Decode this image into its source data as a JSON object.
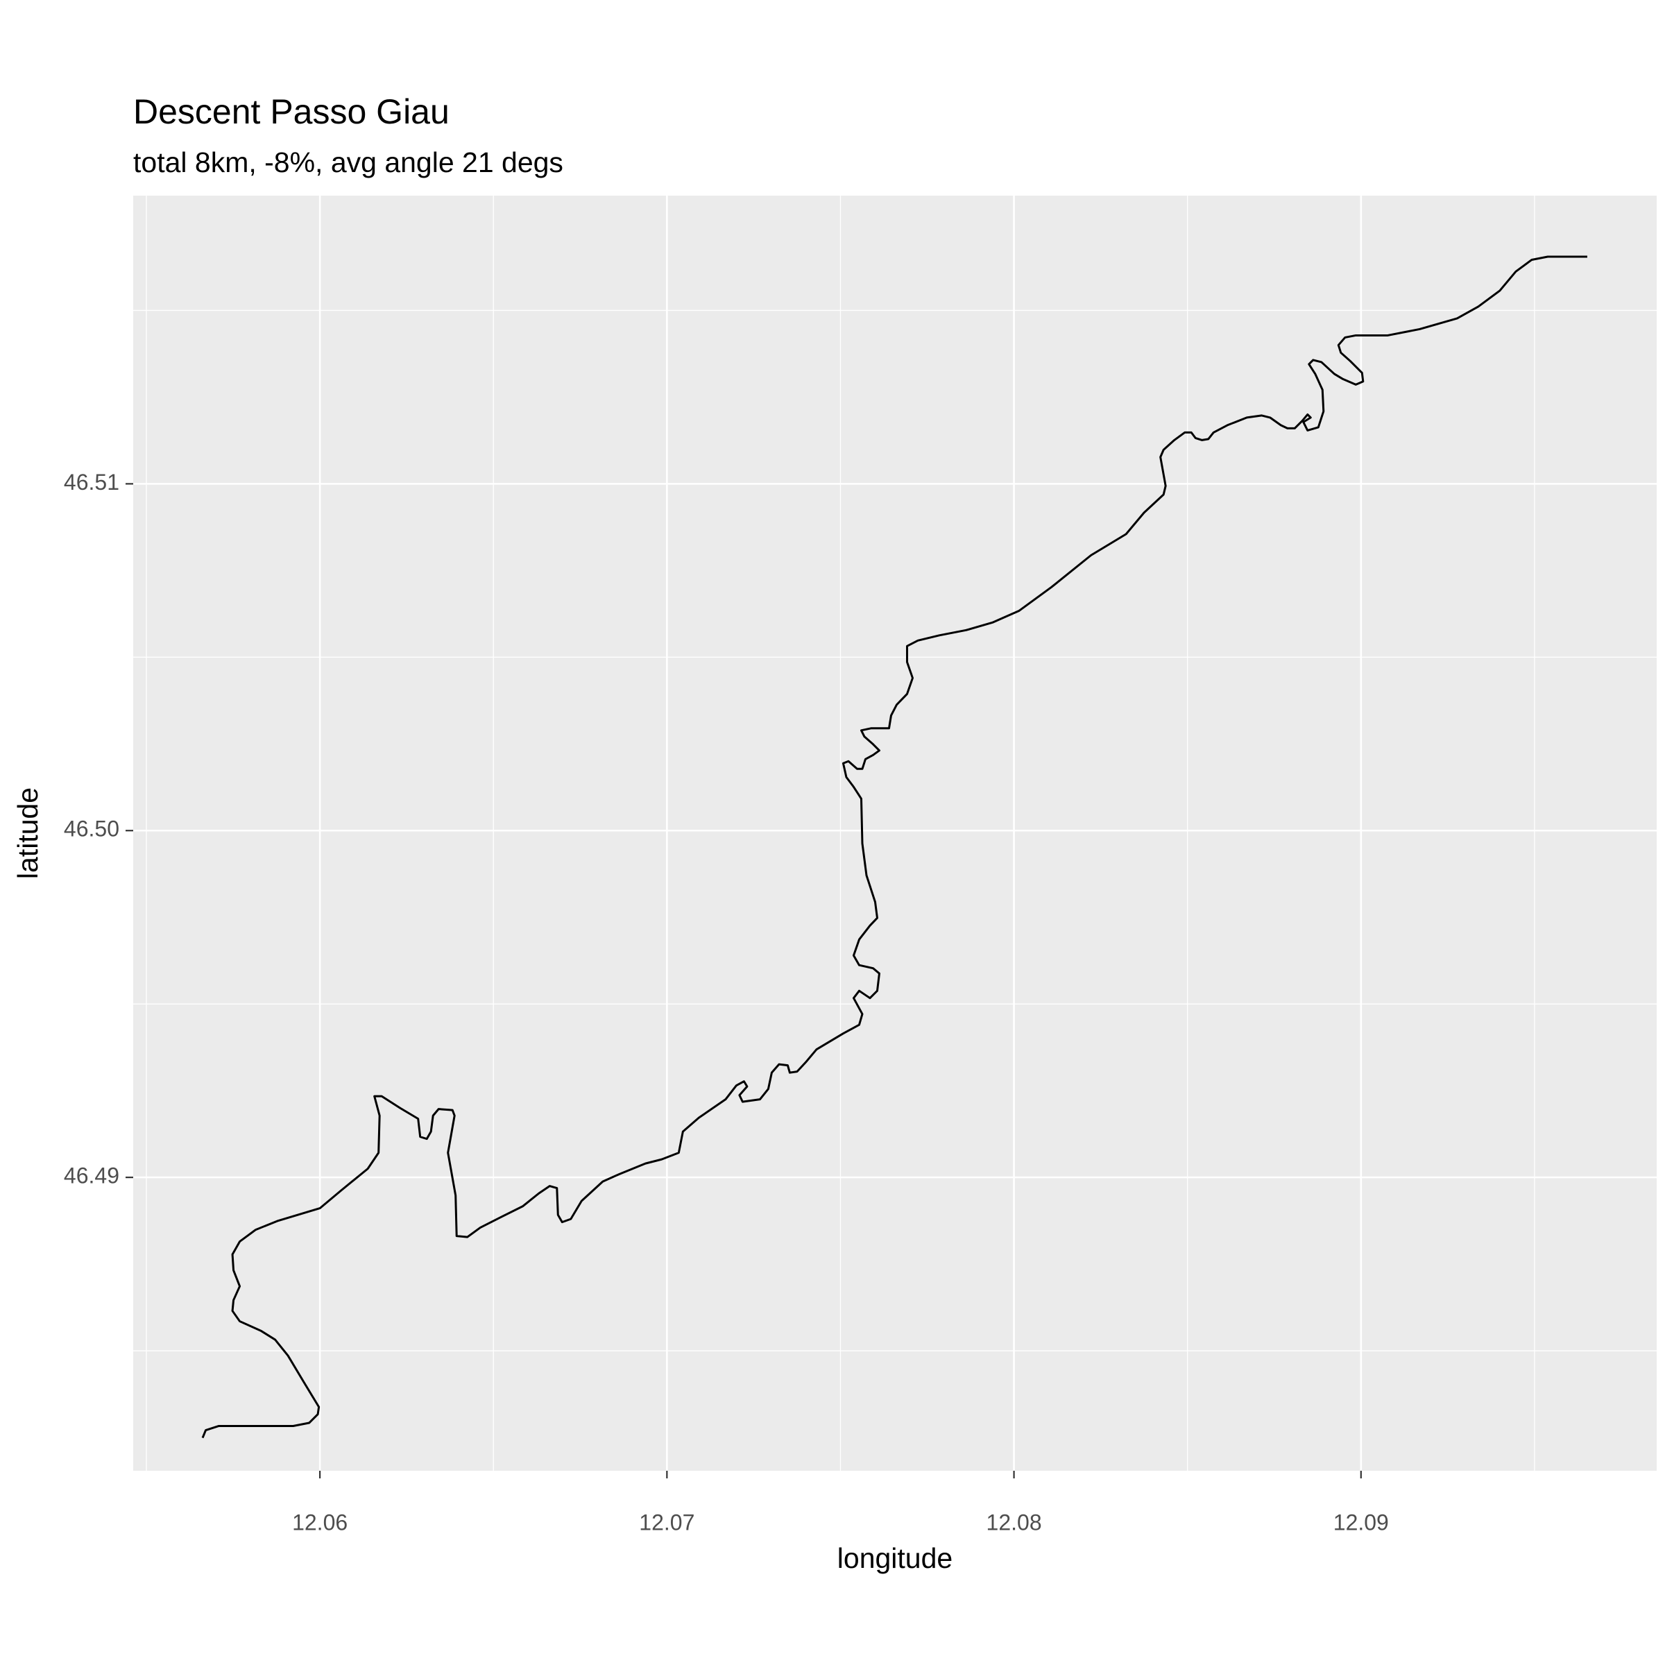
{
  "chart_data": {
    "type": "line",
    "title": "Descent Passo Giau",
    "subtitle": "total 8km, -8%, avg angle 21 degs",
    "xlabel": "longitude",
    "ylabel": "latitude",
    "color": "#000000",
    "background": "#ebebeb",
    "grid": true,
    "xlim": [
      12.05462,
      12.09852
    ],
    "ylim": [
      46.48154,
      46.51831
    ],
    "xticks": [
      12.06,
      12.07,
      12.08,
      12.09
    ],
    "yticks": [
      46.49,
      {
        "value": 46.5,
        "label": "46.50"
      },
      46.51
    ],
    "xminor": [
      12.055,
      12.065,
      12.075,
      12.085,
      12.095
    ],
    "yminor": [
      46.485,
      46.495,
      46.505,
      46.515
    ],
    "x": [
      12.05662,
      12.05671,
      12.05708,
      12.05815,
      12.05923,
      12.05969,
      12.05994,
      12.05997,
      12.05954,
      12.05908,
      12.05871,
      12.05831,
      12.05769,
      12.05748,
      12.05751,
      12.05769,
      12.05751,
      12.05748,
      12.05769,
      12.05815,
      12.05877,
      12.06,
      12.06062,
      12.06138,
      12.06169,
      12.06172,
      12.06157,
      12.06178,
      12.06231,
      12.06283,
      12.06289,
      12.06308,
      12.0632,
      12.06326,
      12.06342,
      12.06382,
      12.06388,
      12.06369,
      12.06391,
      12.06394,
      12.06425,
      12.06462,
      12.06523,
      12.06585,
      12.06631,
      12.06662,
      12.06683,
      12.06686,
      12.06698,
      12.06723,
      12.06754,
      12.06815,
      12.06862,
      12.06938,
      12.06985,
      12.07034,
      12.07046,
      12.07092,
      12.07169,
      12.072,
      12.07222,
      12.07231,
      12.07209,
      12.07218,
      12.07268,
      12.07292,
      12.07302,
      12.07323,
      12.07348,
      12.07354,
      12.07375,
      12.074,
      12.07431,
      12.07508,
      12.07554,
      12.07563,
      12.07538,
      12.07554,
      12.07585,
      12.07606,
      12.07612,
      12.07594,
      12.07554,
      12.07538,
      12.07554,
      12.07585,
      12.07606,
      12.076,
      12.07575,
      12.07563,
      12.0756,
      12.07538,
      12.07517,
      12.07508,
      12.07523,
      12.07548,
      12.07563,
      12.07572,
      12.07594,
      12.07612,
      12.07594,
      12.07569,
      12.0756,
      12.07588,
      12.0764,
      12.07646,
      12.07662,
      12.07692,
      12.07708,
      12.07692,
      12.07692,
      12.07723,
      12.07785,
      12.07862,
      12.07938,
      12.08015,
      12.08108,
      12.08222,
      12.08323,
      12.08375,
      12.08431,
      12.08437,
      12.08422,
      12.08431,
      12.08462,
      12.08492,
      12.08511,
      12.08523,
      12.08542,
      12.0856,
      12.08575,
      12.08615,
      12.08671,
      12.08714,
      12.08738,
      12.08769,
      12.08788,
      12.08809,
      12.08831,
      12.08846,
      12.08855,
      12.08834,
      12.08846,
      12.08877,
      12.08892,
      12.08889,
      12.08868,
      12.0885,
      12.08862,
      12.08886,
      12.08923,
      12.08948,
      12.08985,
      12.09006,
      12.09003,
      12.08969,
      12.08942,
      12.08935,
      12.08954,
      12.08985,
      12.09077,
      12.09169,
      12.09277,
      12.09338,
      12.094,
      12.09446,
      12.09492,
      12.09538,
      12.096,
      12.09652
    ],
    "values": [
      46.48249,
      46.48271,
      46.48283,
      46.48283,
      46.48283,
      46.48292,
      46.48317,
      46.48338,
      46.48409,
      46.48486,
      46.48532,
      46.48557,
      46.48585,
      46.48615,
      46.48646,
      46.48686,
      46.48732,
      46.48778,
      46.48815,
      46.48849,
      46.48874,
      46.48911,
      46.48963,
      46.49025,
      46.49071,
      46.49178,
      46.49234,
      46.49234,
      46.492,
      46.49169,
      46.49117,
      46.49111,
      46.49132,
      46.49178,
      46.49197,
      46.49194,
      46.49178,
      46.49071,
      46.48948,
      46.48831,
      46.48828,
      46.48855,
      46.48886,
      46.48917,
      46.48954,
      46.48975,
      46.48969,
      46.48892,
      46.48871,
      46.4888,
      46.48932,
      46.48988,
      46.49009,
      46.4904,
      46.49052,
      46.49071,
      46.49132,
      46.49172,
      46.49225,
      46.49265,
      46.49277,
      46.49262,
      46.49237,
      46.49218,
      46.49225,
      46.49255,
      46.49302,
      46.49326,
      46.49323,
      46.49302,
      46.49305,
      46.49332,
      46.49369,
      46.49415,
      46.4944,
      46.49471,
      46.49517,
      46.49538,
      46.49517,
      46.49538,
      46.49588,
      46.49603,
      46.49612,
      46.4964,
      46.49686,
      46.49726,
      46.49748,
      46.49794,
      46.49871,
      46.49963,
      46.50092,
      46.50126,
      46.50154,
      46.50194,
      46.502,
      46.50178,
      46.50178,
      46.50206,
      46.50218,
      46.50231,
      46.50249,
      46.50271,
      46.50289,
      46.50295,
      46.50295,
      46.50332,
      46.50363,
      46.50394,
      46.5044,
      46.50486,
      46.50532,
      46.50548,
      46.50563,
      46.50578,
      46.506,
      46.50634,
      46.50702,
      46.50794,
      46.50855,
      46.50917,
      46.50969,
      46.50994,
      46.51077,
      46.51098,
      46.51126,
      46.51148,
      46.51148,
      46.51132,
      46.51126,
      46.51129,
      46.51148,
      46.51169,
      46.51191,
      46.51197,
      46.51191,
      46.51169,
      46.5116,
      46.5116,
      46.51182,
      46.512,
      46.51191,
      46.51178,
      46.51154,
      46.51163,
      46.51209,
      46.51271,
      46.51317,
      46.51345,
      46.51357,
      46.51351,
      46.51317,
      46.51302,
      46.51286,
      46.51295,
      46.5132,
      46.51354,
      46.51378,
      46.514,
      46.51422,
      46.51428,
      46.51428,
      46.51446,
      46.51477,
      46.51511,
      46.51557,
      46.51612,
      46.51646,
      46.51655,
      46.51655,
      46.51655
    ]
  }
}
